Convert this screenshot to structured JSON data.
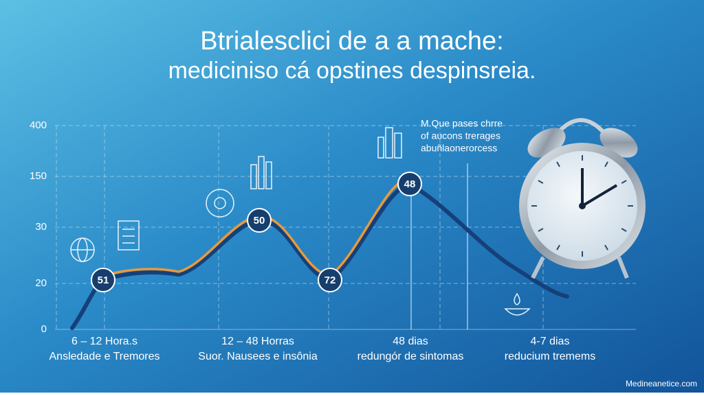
{
  "title": {
    "line1": "Btrialesclici de a a mache:",
    "line2": "mediciniso cá opstines despinsreia."
  },
  "y_axis": {
    "labels": [
      "400",
      "150",
      "30",
      "20",
      "0"
    ]
  },
  "phases": [
    {
      "period": "6 – 12 Hora.s",
      "description": "Ansledade e Tremores"
    },
    {
      "period": "12 – 48 Horras",
      "description": "Suor. Nausees e insônia"
    },
    {
      "period": "48 dias",
      "description": "redungór de sintomas"
    },
    {
      "period": "4-7 dias",
      "description": "reducium tremems"
    }
  ],
  "markers": [
    "51",
    "50",
    "72",
    "48"
  ],
  "note": {
    "lines": [
      "M.Que pases chrre",
      "of aucons trerages",
      "abuñlaonerorcess"
    ]
  },
  "watermark": "Medineanetice.com"
}
